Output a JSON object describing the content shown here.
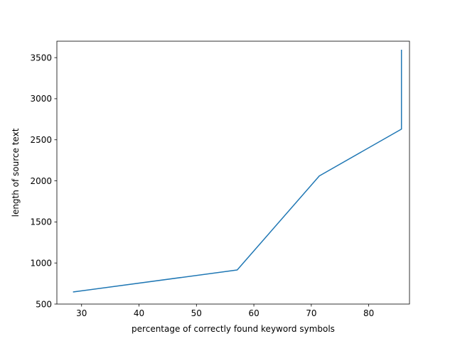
{
  "chart_data": {
    "type": "line",
    "title": "",
    "xlabel": "percentage of correctly found keyword symbols",
    "ylabel": "length of source text",
    "xlim": [
      25.7,
      87.1
    ],
    "ylim": [
      500,
      3700
    ],
    "x_ticks": [
      30,
      40,
      50,
      60,
      70,
      80
    ],
    "y_ticks": [
      500,
      1000,
      1500,
      2000,
      2500,
      3000,
      3500
    ],
    "grid": false,
    "series": [
      {
        "color": "#1f77b4",
        "points": [
          {
            "x": 28.6,
            "y": 648
          },
          {
            "x": 57.1,
            "y": 915
          },
          {
            "x": 71.4,
            "y": 2060
          },
          {
            "x": 85.7,
            "y": 2630
          },
          {
            "x": 85.7,
            "y": 3590
          }
        ]
      }
    ]
  }
}
